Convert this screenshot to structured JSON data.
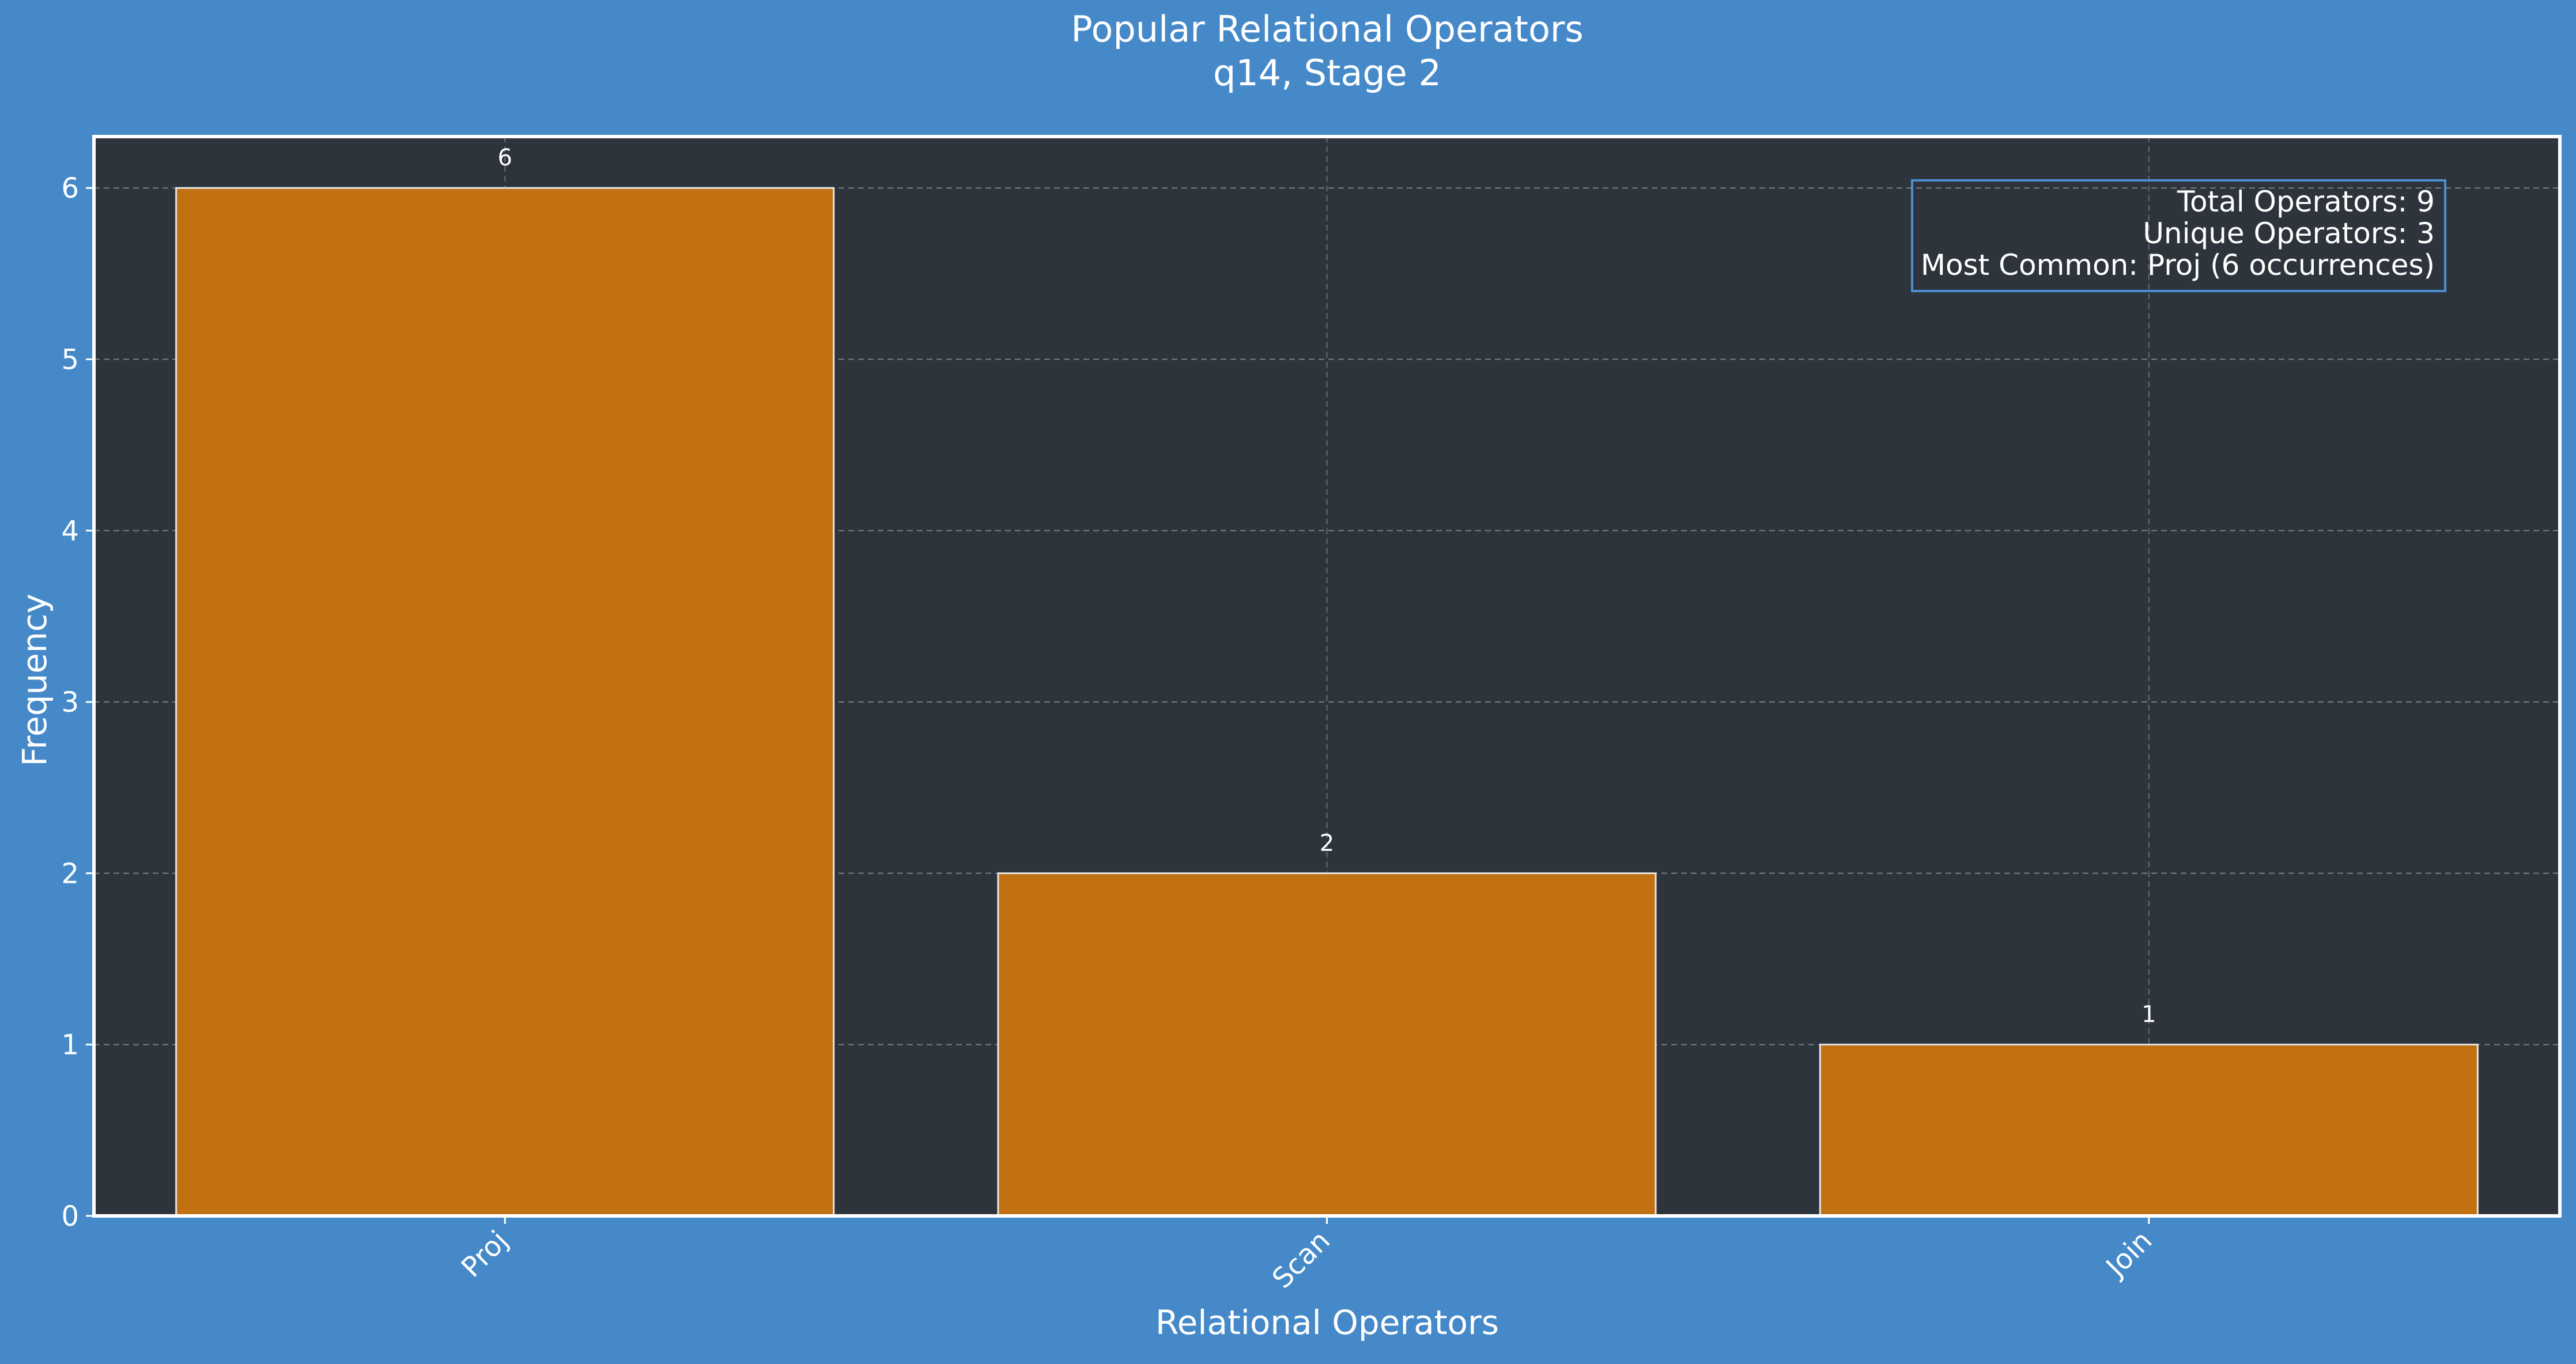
{
  "colors": {
    "figure_background": "#4589c9",
    "plot_background": "#2e343c",
    "bar_fill": "#c17111",
    "bar_edge": "#e6e6e6",
    "axis_spine": "#ffffff",
    "grid": "#7a7f86",
    "text": "#ffffff",
    "stats_box_border": "#4d8fd1"
  },
  "chart_data": {
    "type": "bar",
    "title": "Popular Relational Operators",
    "subtitle": "q14, Stage 2",
    "xlabel": "Relational Operators",
    "ylabel": "Frequency",
    "categories": [
      "Proj",
      "Scan",
      "Join"
    ],
    "values": [
      6,
      2,
      1
    ],
    "data_labels": [
      "6",
      "2",
      "1"
    ],
    "ylim": [
      0,
      6.3
    ],
    "yticks": [
      0,
      1,
      2,
      3,
      4,
      5,
      6
    ],
    "grid": true,
    "stats_box": {
      "position": "top-right",
      "lines": [
        "Total Operators: 9",
        "Unique Operators: 3",
        "Most Common: Proj (6 occurrences)"
      ]
    }
  }
}
